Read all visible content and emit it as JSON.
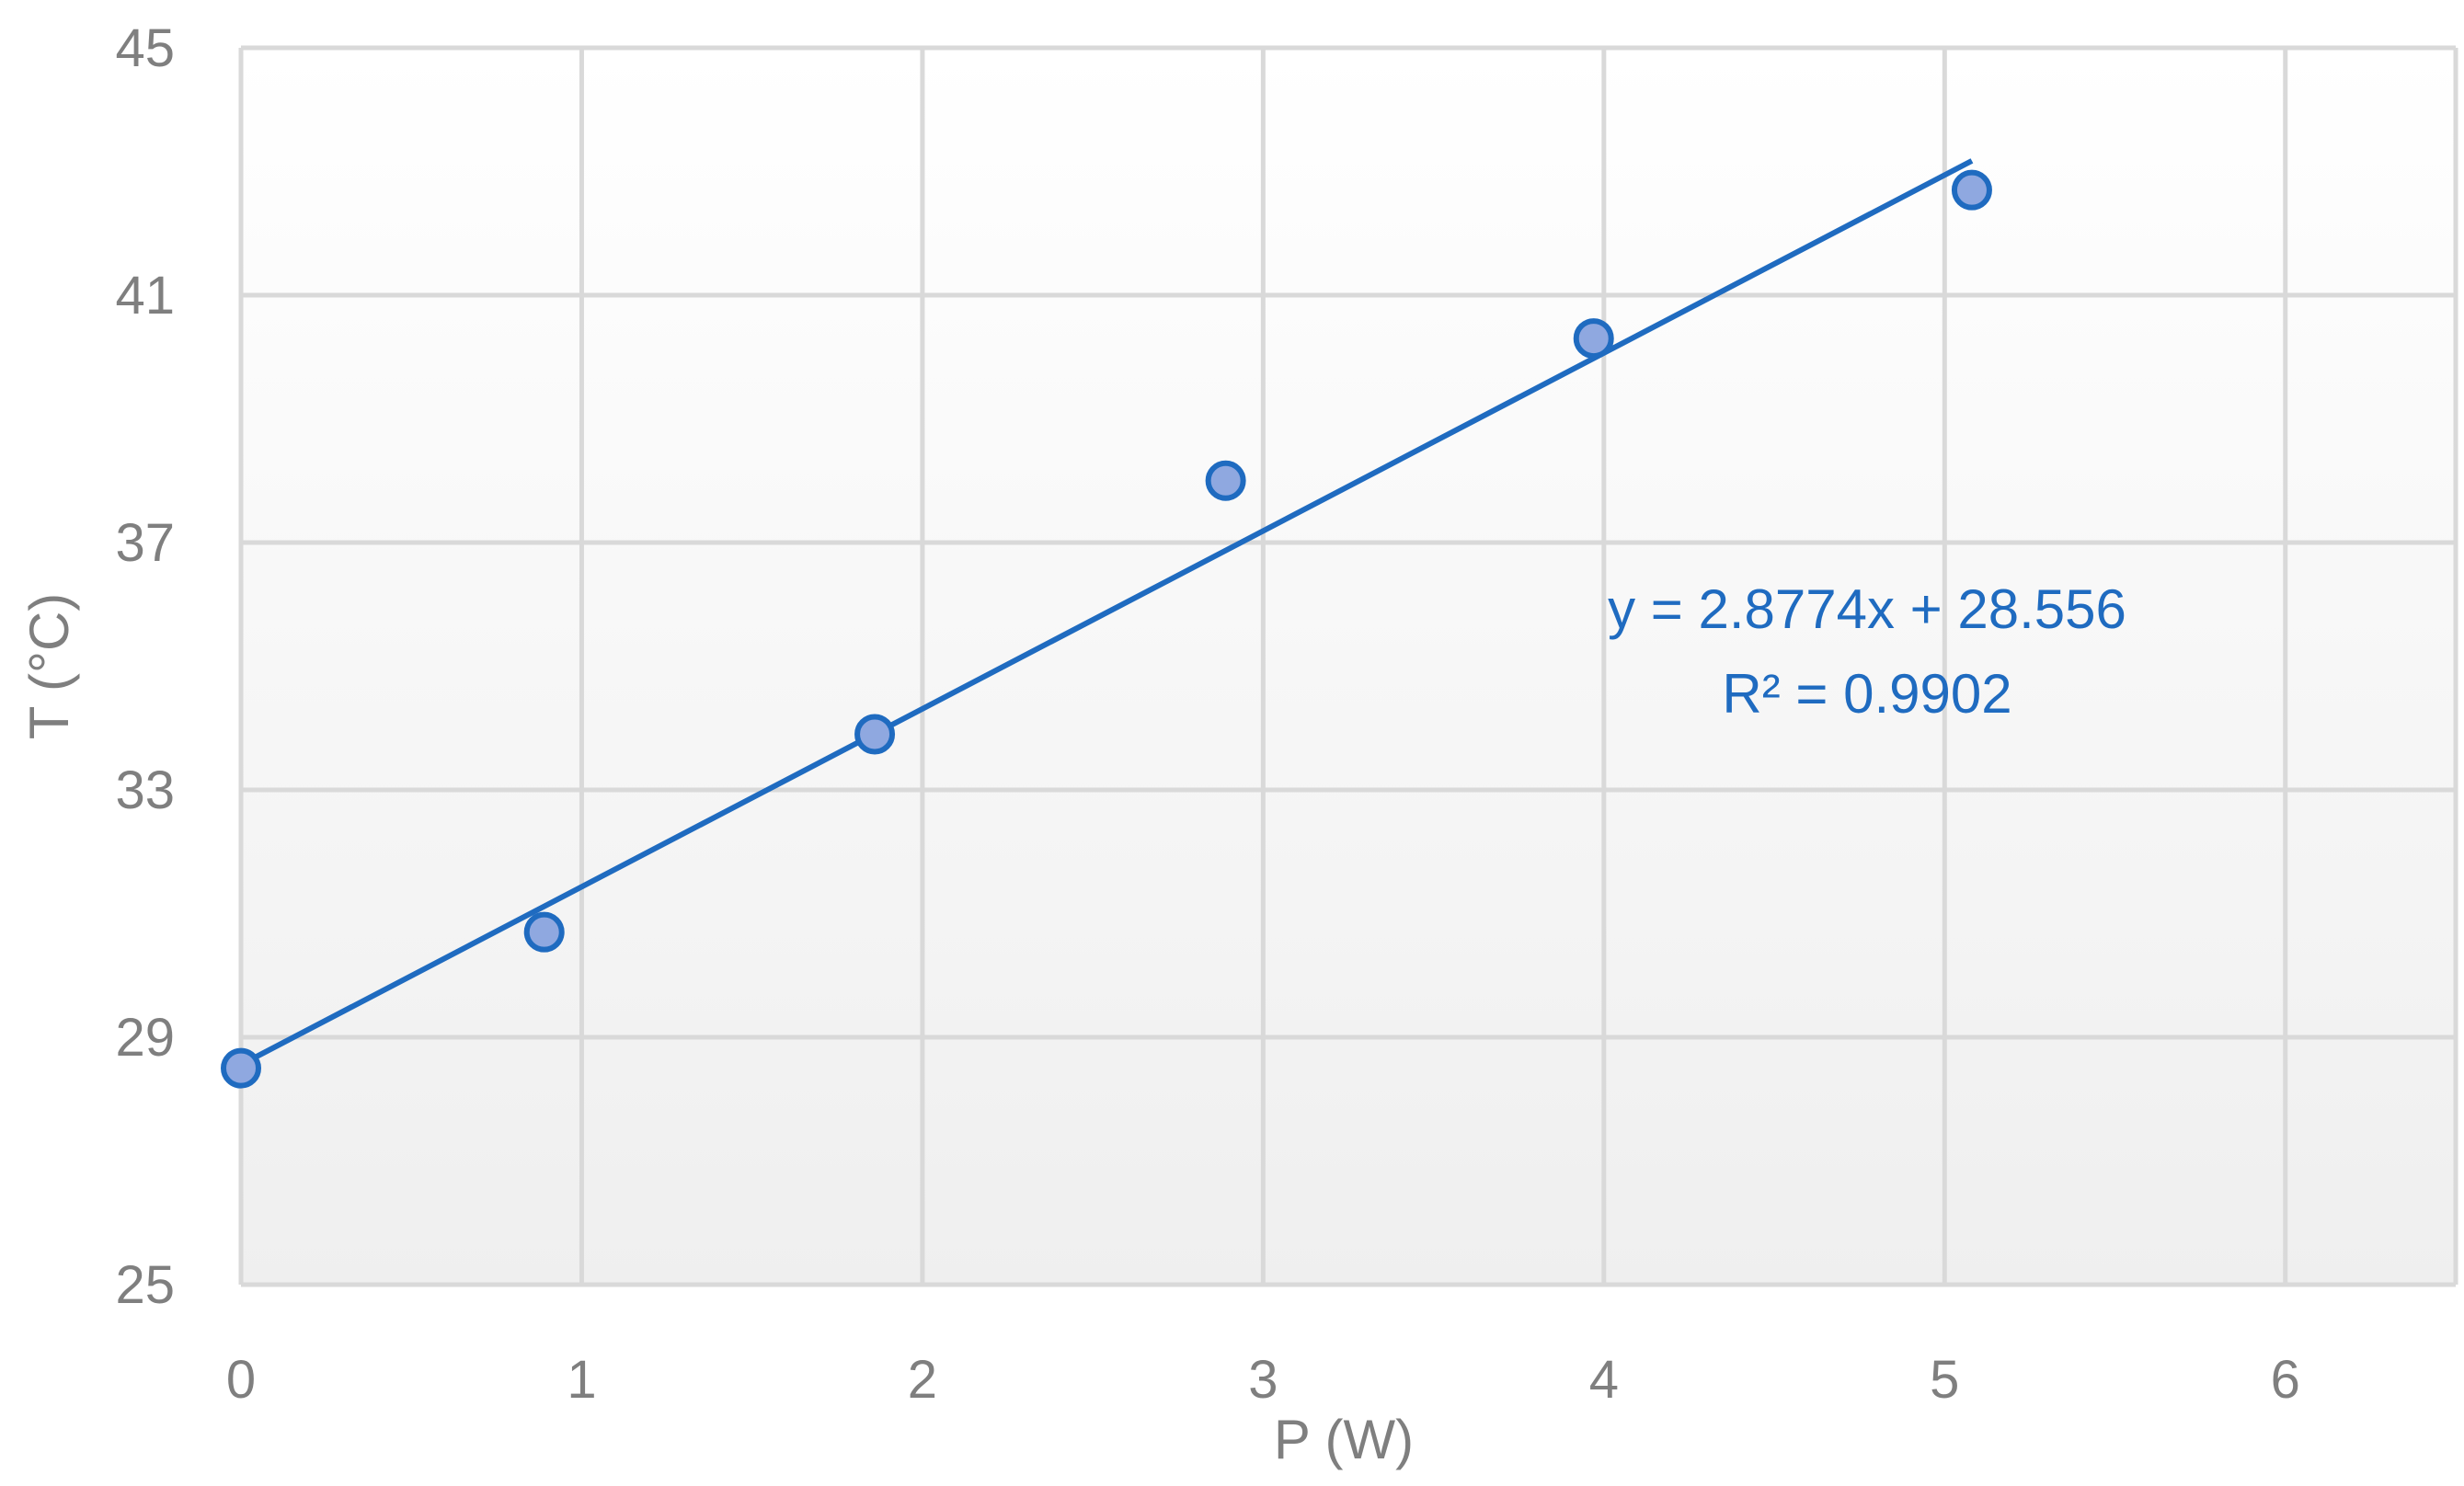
{
  "chart_data": {
    "type": "scatter",
    "title": "",
    "xlabel": "P (W)",
    "ylabel": "T (°C)",
    "xlim": [
      0,
      6.5
    ],
    "ylim": [
      25,
      45
    ],
    "x_ticks": [
      0,
      1,
      2,
      3,
      4,
      5,
      6
    ],
    "y_ticks": [
      25,
      29,
      33,
      37,
      41,
      45
    ],
    "grid": true,
    "legend": "none",
    "series": [
      {
        "x": [
          0,
          0.89,
          1.86,
          2.89,
          3.97,
          5.08
        ],
        "y": [
          28.5,
          30.7,
          33.9,
          38.0,
          40.3,
          42.7
        ]
      }
    ],
    "trendline": {
      "type": "linear",
      "slope": 2.8774,
      "intercept": 28.556,
      "x_range": [
        0,
        5.08
      ],
      "equation_label": "y = 2.8774x + 28.556",
      "r2_label": "R² = 0.9902"
    },
    "colors": {
      "marker_fill": "#8fa8e0",
      "marker_stroke": "#1f6bc0",
      "trendline": "#1f6bc0",
      "grid": "#d9d9d9",
      "axis_text": "#7f7f7f",
      "trend_text": "#1f6bc0",
      "plot_bg_top": "#ffffff",
      "plot_bg_bottom": "#efefef"
    }
  }
}
